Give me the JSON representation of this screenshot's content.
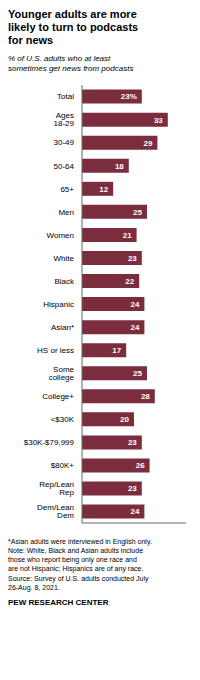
{
  "chart_data": {
    "type": "bar",
    "orientation": "horizontal",
    "title": "Younger adults are more\nlikely to turn to podcasts\nfor news",
    "subtitle": "% of U.S. adults who at least\nsometimes get news from podcasts",
    "note": "*Asian adults were interviewed in English only.\nNote: White, Black and Asian adults include\nthose who report being only one race and\nare not Hispanic; Hispanics are of any race.\nSource: Survey of U.S. adults conducted July\n26-Aug. 8, 2021.",
    "footer": "PEW RESEARCH CENTER",
    "categories": [
      "Total",
      "Ages 18-29",
      "30-49",
      "50-64",
      "65+",
      "Men",
      "Women",
      "White",
      "Black",
      "Hispanic",
      "Asian*",
      "HS or less",
      "Some college",
      "College+",
      "<$30K",
      "$30K-$79,999",
      "$80K+",
      "Rep/Lean Rep",
      "Dem/Lean Dem"
    ],
    "values": [
      23,
      33,
      29,
      18,
      12,
      25,
      21,
      23,
      22,
      24,
      24,
      17,
      25,
      28,
      20,
      23,
      26,
      23,
      24
    ],
    "value_labels": [
      "23%",
      "33",
      "29",
      "18",
      "12",
      "25",
      "21",
      "23",
      "22",
      "24",
      "24",
      "17",
      "25",
      "28",
      "20",
      "23",
      "26",
      "23",
      "24"
    ],
    "color": "#7b2d3e",
    "xlim": [
      0,
      40
    ],
    "data_labels": true,
    "tick_labels": "y"
  }
}
